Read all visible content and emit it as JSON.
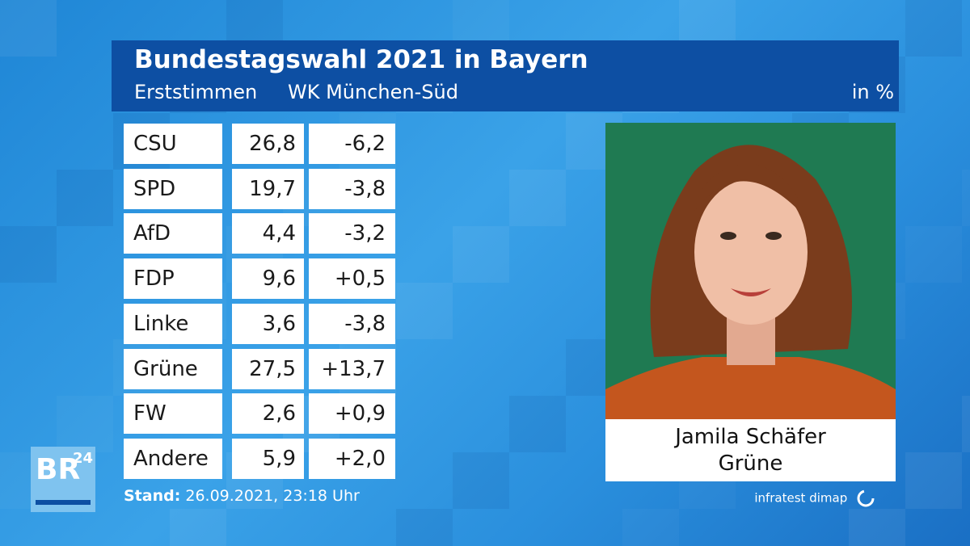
{
  "header": {
    "title": "Bundestagswahl 2021 in Bayern",
    "subtitle": "Erststimmen",
    "district": "WK München-Süd",
    "unit": "in %"
  },
  "table": {
    "rows": [
      [
        "CSU",
        "26,8",
        "-6,2"
      ],
      [
        "SPD",
        "19,7",
        "-3,8"
      ],
      [
        "AfD",
        "4,4",
        "-3,2"
      ],
      [
        "FDP",
        "9,6",
        "+0,5"
      ],
      [
        "Linke",
        "3,6",
        "-3,8"
      ],
      [
        "Grüne",
        "27,5",
        "+13,7"
      ],
      [
        "FW",
        "2,6",
        "+0,9"
      ],
      [
        "Andere",
        "5,9",
        "+2,0"
      ]
    ]
  },
  "candidate": {
    "name": "Jamila Schäfer",
    "party": "Grüne"
  },
  "footer": {
    "stand_label": "Stand:",
    "stand": "26.09.2021, 23:18 Uhr",
    "source": "infratest dimap"
  },
  "logo": {
    "text": "BR",
    "superscript": "24"
  }
}
